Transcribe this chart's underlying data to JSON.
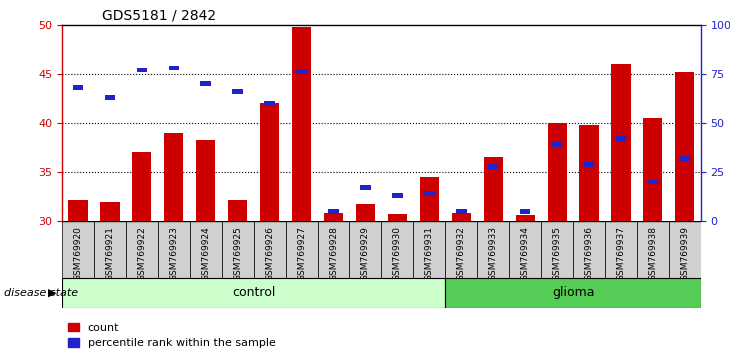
{
  "title": "GDS5181 / 2842",
  "samples": [
    "GSM769920",
    "GSM769921",
    "GSM769922",
    "GSM769923",
    "GSM769924",
    "GSM769925",
    "GSM769926",
    "GSM769927",
    "GSM769928",
    "GSM769929",
    "GSM769930",
    "GSM769931",
    "GSM769932",
    "GSM769933",
    "GSM769934",
    "GSM769935",
    "GSM769936",
    "GSM769937",
    "GSM769938",
    "GSM769939"
  ],
  "count": [
    32.2,
    32.0,
    37.0,
    39.0,
    38.3,
    32.2,
    42.0,
    49.8,
    30.8,
    31.8,
    30.7,
    34.5,
    30.8,
    36.5,
    30.6,
    40.0,
    39.8,
    46.0,
    40.5,
    45.2
  ],
  "percentile": [
    68,
    63,
    77,
    78,
    70,
    66,
    60,
    76,
    5,
    17,
    13,
    14,
    5,
    28,
    5,
    39,
    29,
    42,
    20,
    32
  ],
  "group": [
    "control",
    "control",
    "control",
    "control",
    "control",
    "control",
    "control",
    "control",
    "control",
    "control",
    "control",
    "control",
    "glioma",
    "glioma",
    "glioma",
    "glioma",
    "glioma",
    "glioma",
    "glioma",
    "glioma"
  ],
  "ymin": 30,
  "ymax": 50,
  "yticks_left": [
    30,
    35,
    40,
    45,
    50
  ],
  "yticks_right": [
    0,
    25,
    50,
    75,
    100
  ],
  "bar_color": "#cc0000",
  "percentile_color": "#2222cc",
  "control_light_color": "#ccffcc",
  "glioma_color": "#55cc55",
  "label_bg_color": "#d0d0d0",
  "plot_bg_color": "#ffffff",
  "axis_color_left": "#cc0000",
  "axis_color_right": "#2222cc",
  "bar_width": 0.6,
  "disease_state_label": "disease state",
  "legend_count": "count",
  "legend_percentile": "percentile rank within the sample",
  "n_control": 12,
  "n_glioma": 8
}
